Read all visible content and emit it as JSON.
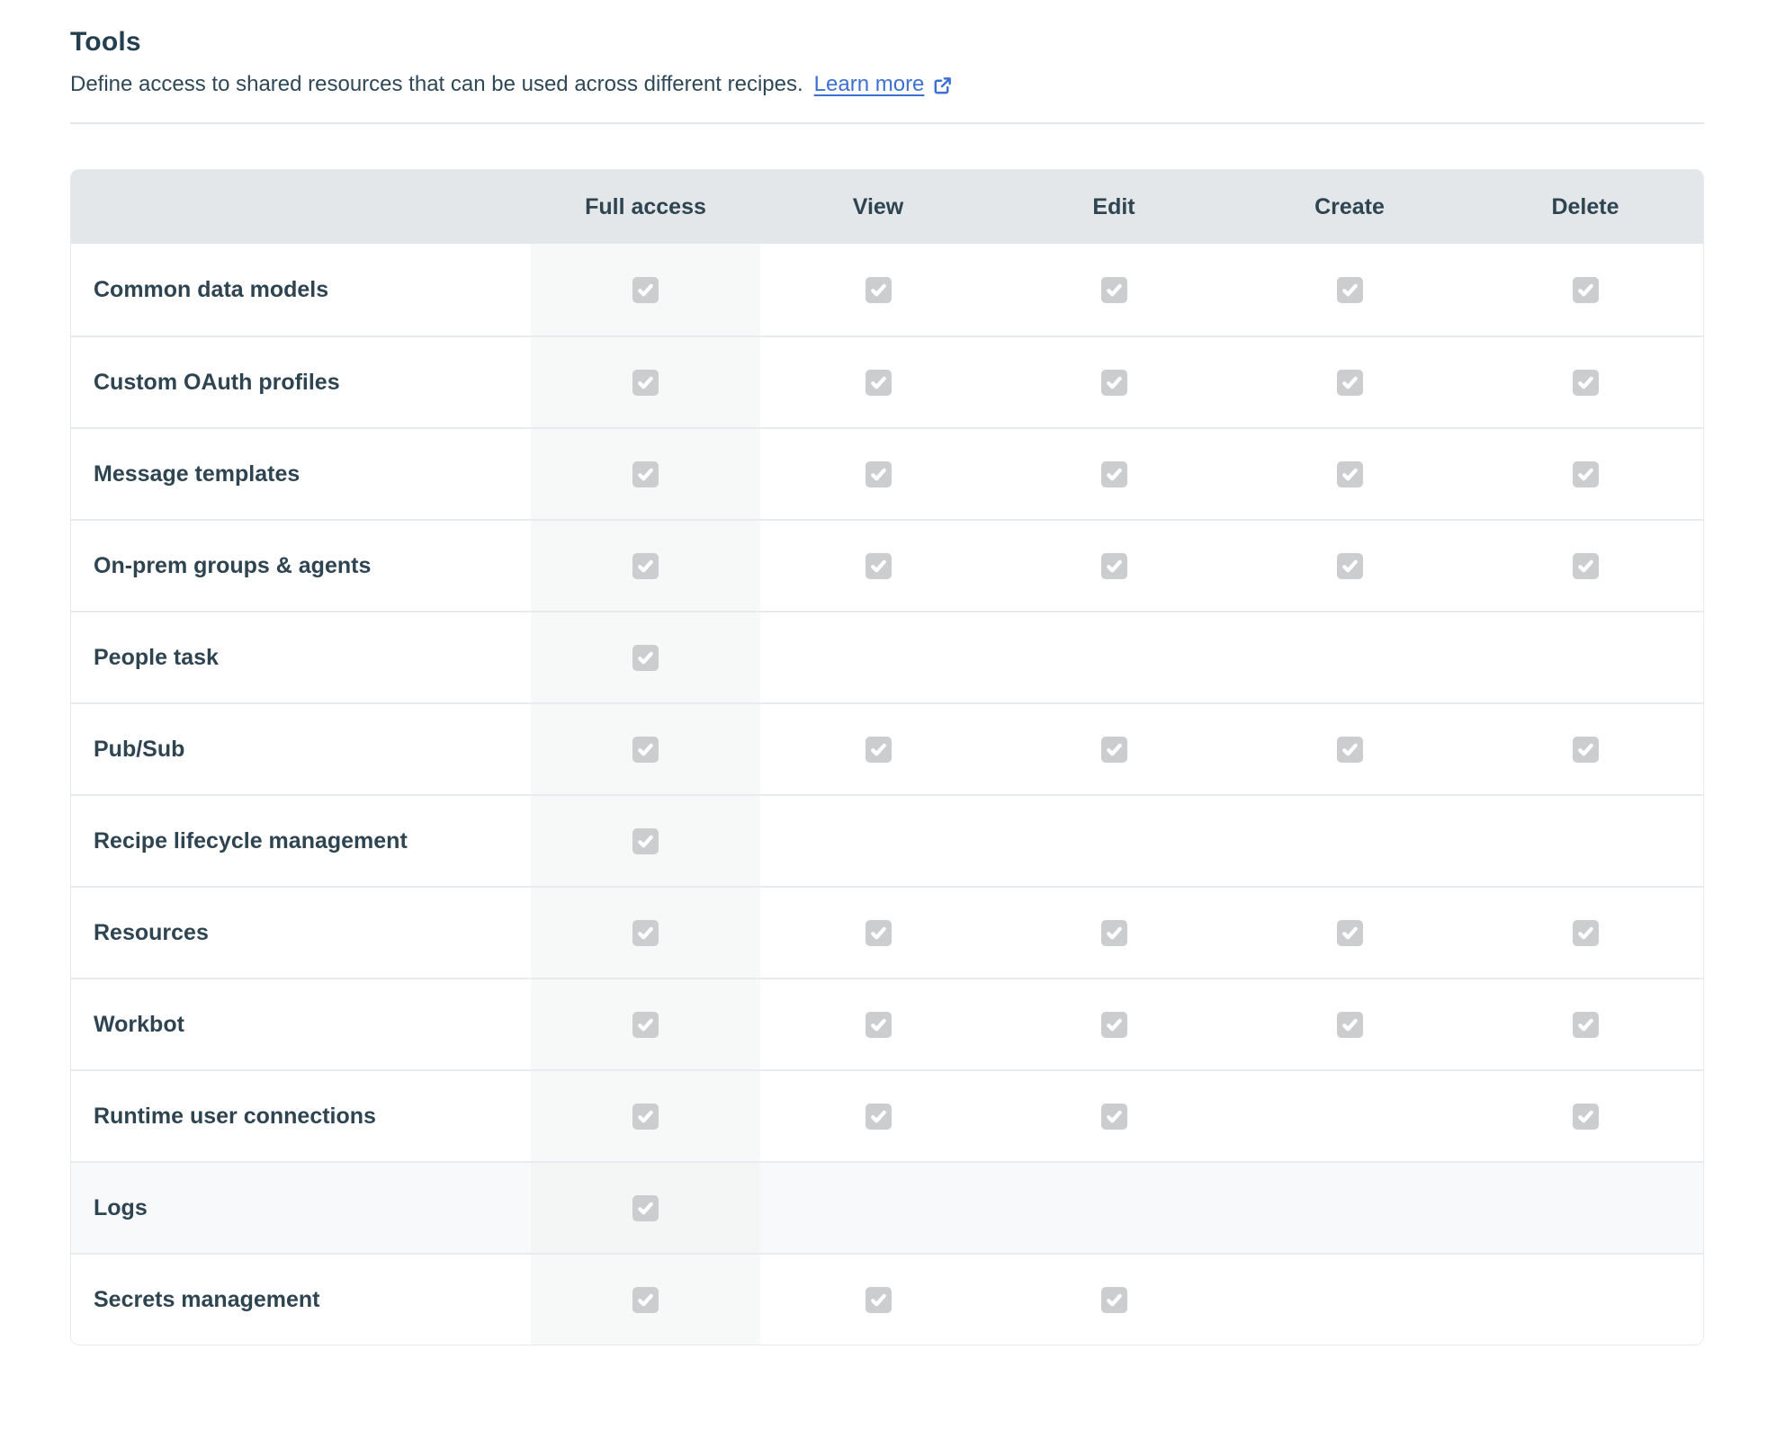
{
  "page": {
    "title": "Tools",
    "subtitle": "Define access to shared resources that can be used across different recipes.",
    "learn_more_label": "Learn more"
  },
  "colors": {
    "heading_text": "#24404f",
    "body_text": "#2e4451",
    "link_blue": "#3e70d4",
    "table_header_bg": "#e3e7ea",
    "full_access_column_bg": "#f7f8f8",
    "row_divider": "#e9ecee",
    "checkbox_bg": "#cbcdce",
    "checkbox_check": "#ffffff",
    "highlighted_row_bg": "#f8f9fb"
  },
  "table": {
    "columns": [
      {
        "key": "full_access",
        "label": "Full access"
      },
      {
        "key": "view",
        "label": "View"
      },
      {
        "key": "edit",
        "label": "Edit"
      },
      {
        "key": "create",
        "label": "Create"
      },
      {
        "key": "delete",
        "label": "Delete"
      }
    ],
    "rows": [
      {
        "label": "Common data models",
        "access": {
          "full_access": true,
          "view": true,
          "edit": true,
          "create": true,
          "delete": true
        }
      },
      {
        "label": "Custom OAuth profiles",
        "access": {
          "full_access": true,
          "view": true,
          "edit": true,
          "create": true,
          "delete": true
        }
      },
      {
        "label": "Message templates",
        "access": {
          "full_access": true,
          "view": true,
          "edit": true,
          "create": true,
          "delete": true
        }
      },
      {
        "label": "On-prem groups & agents",
        "access": {
          "full_access": true,
          "view": true,
          "edit": true,
          "create": true,
          "delete": true
        }
      },
      {
        "label": "People task",
        "access": {
          "full_access": true,
          "view": false,
          "edit": false,
          "create": false,
          "delete": false
        }
      },
      {
        "label": "Pub/Sub",
        "access": {
          "full_access": true,
          "view": true,
          "edit": true,
          "create": true,
          "delete": true
        }
      },
      {
        "label": "Recipe lifecycle management",
        "access": {
          "full_access": true,
          "view": false,
          "edit": false,
          "create": false,
          "delete": false
        }
      },
      {
        "label": "Resources",
        "access": {
          "full_access": true,
          "view": true,
          "edit": true,
          "create": true,
          "delete": true
        }
      },
      {
        "label": "Workbot",
        "access": {
          "full_access": true,
          "view": true,
          "edit": true,
          "create": true,
          "delete": true
        }
      },
      {
        "label": "Runtime user connections",
        "access": {
          "full_access": true,
          "view": true,
          "edit": true,
          "create": false,
          "delete": true
        }
      },
      {
        "label": "Logs",
        "access": {
          "full_access": true,
          "view": false,
          "edit": false,
          "create": false,
          "delete": false
        },
        "highlighted": true
      },
      {
        "label": "Secrets management",
        "access": {
          "full_access": true,
          "view": true,
          "edit": true,
          "create": false,
          "delete": false
        }
      }
    ]
  }
}
